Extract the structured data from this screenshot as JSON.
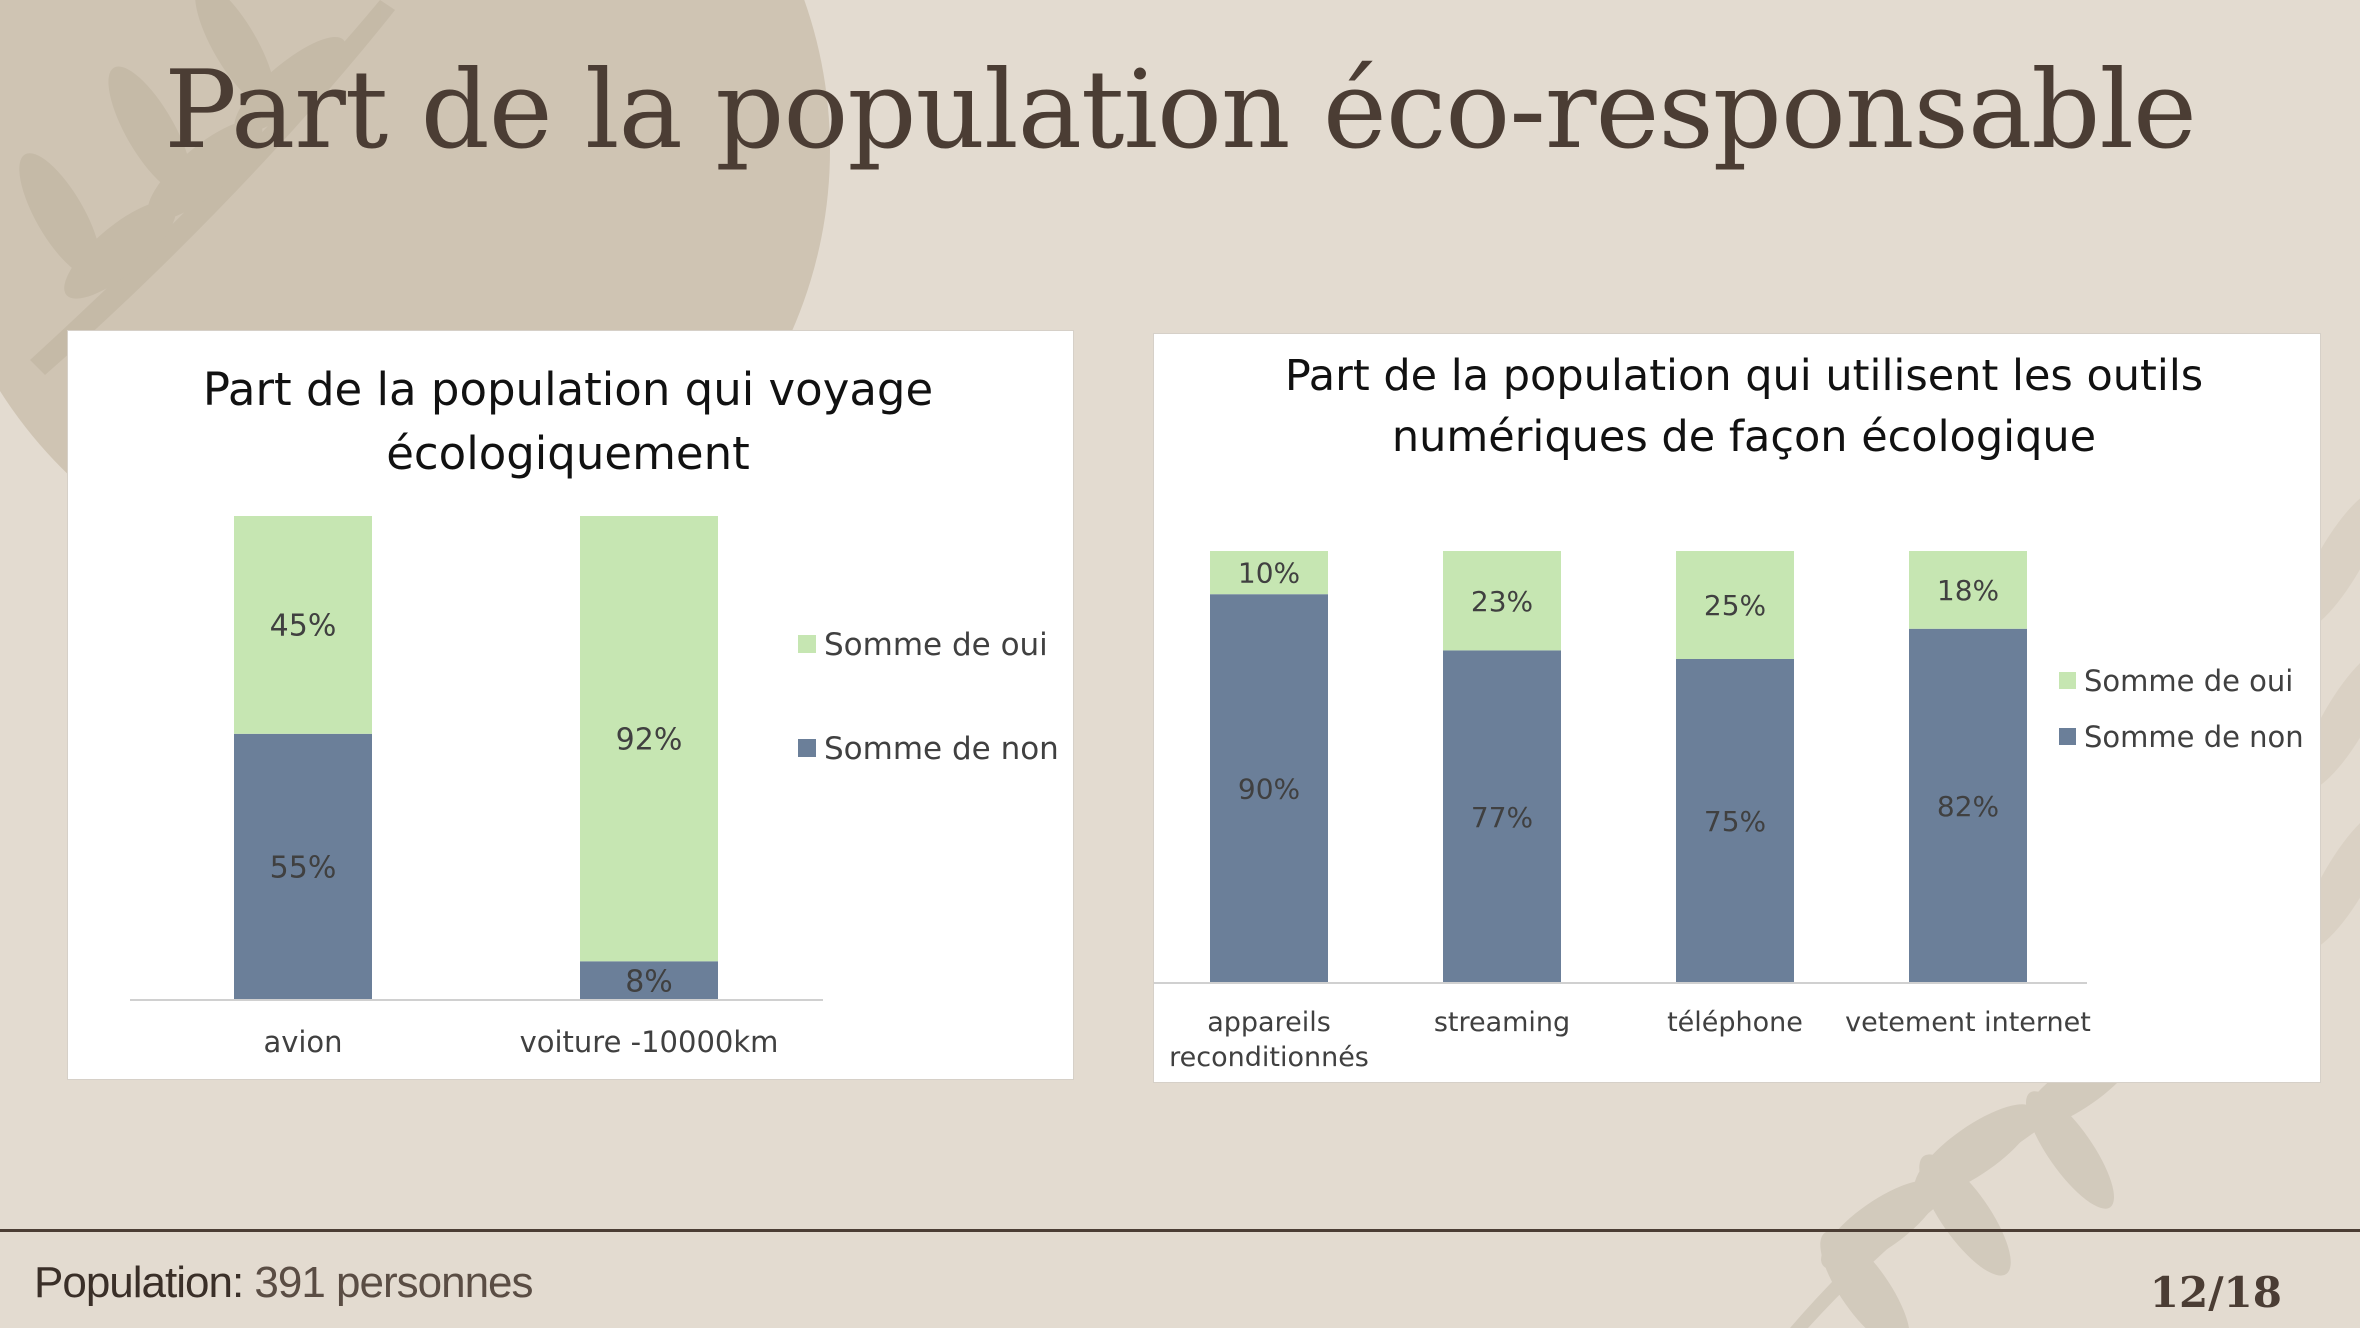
{
  "slide": {
    "title": "Part de la population éco-responsable",
    "footer_label": "Population:",
    "footer_value": "391 personnes",
    "page_number": "12/18"
  },
  "colors": {
    "oui": "#c6e6b2",
    "non": "#6b7f99",
    "background": "#e3dbd0",
    "title": "#4b3d34"
  },
  "chart_data": [
    {
      "type": "bar",
      "stacked": true,
      "title_lines": [
        "Part de la population qui voyage",
        "écologiquement"
      ],
      "categories": [
        "avion",
        "voiture -10000km"
      ],
      "series": [
        {
          "name": "Somme de non",
          "values": [
            55,
            8
          ],
          "labels": [
            "55%",
            "8%"
          ]
        },
        {
          "name": "Somme de oui",
          "values": [
            45,
            92
          ],
          "labels": [
            "45%",
            "92%"
          ]
        }
      ],
      "ylim": [
        0,
        100
      ],
      "legend": "right",
      "grid": false
    },
    {
      "type": "bar",
      "stacked": true,
      "title_lines": [
        "Part de la population qui utilisent les outils",
        "numériques de façon écologique"
      ],
      "categories": [
        [
          "appareils",
          "reconditionnés"
        ],
        [
          "streaming"
        ],
        [
          "téléphone"
        ],
        [
          "vetement internet"
        ]
      ],
      "series": [
        {
          "name": "Somme de non",
          "values": [
            90,
            77,
            75,
            82
          ],
          "labels": [
            "90%",
            "77%",
            "75%",
            "82%"
          ]
        },
        {
          "name": "Somme de oui",
          "values": [
            10,
            23,
            25,
            18
          ],
          "labels": [
            "10%",
            "23%",
            "25%",
            "18%"
          ]
        }
      ],
      "ylim": [
        0,
        100
      ],
      "legend": "right",
      "grid": false
    }
  ]
}
